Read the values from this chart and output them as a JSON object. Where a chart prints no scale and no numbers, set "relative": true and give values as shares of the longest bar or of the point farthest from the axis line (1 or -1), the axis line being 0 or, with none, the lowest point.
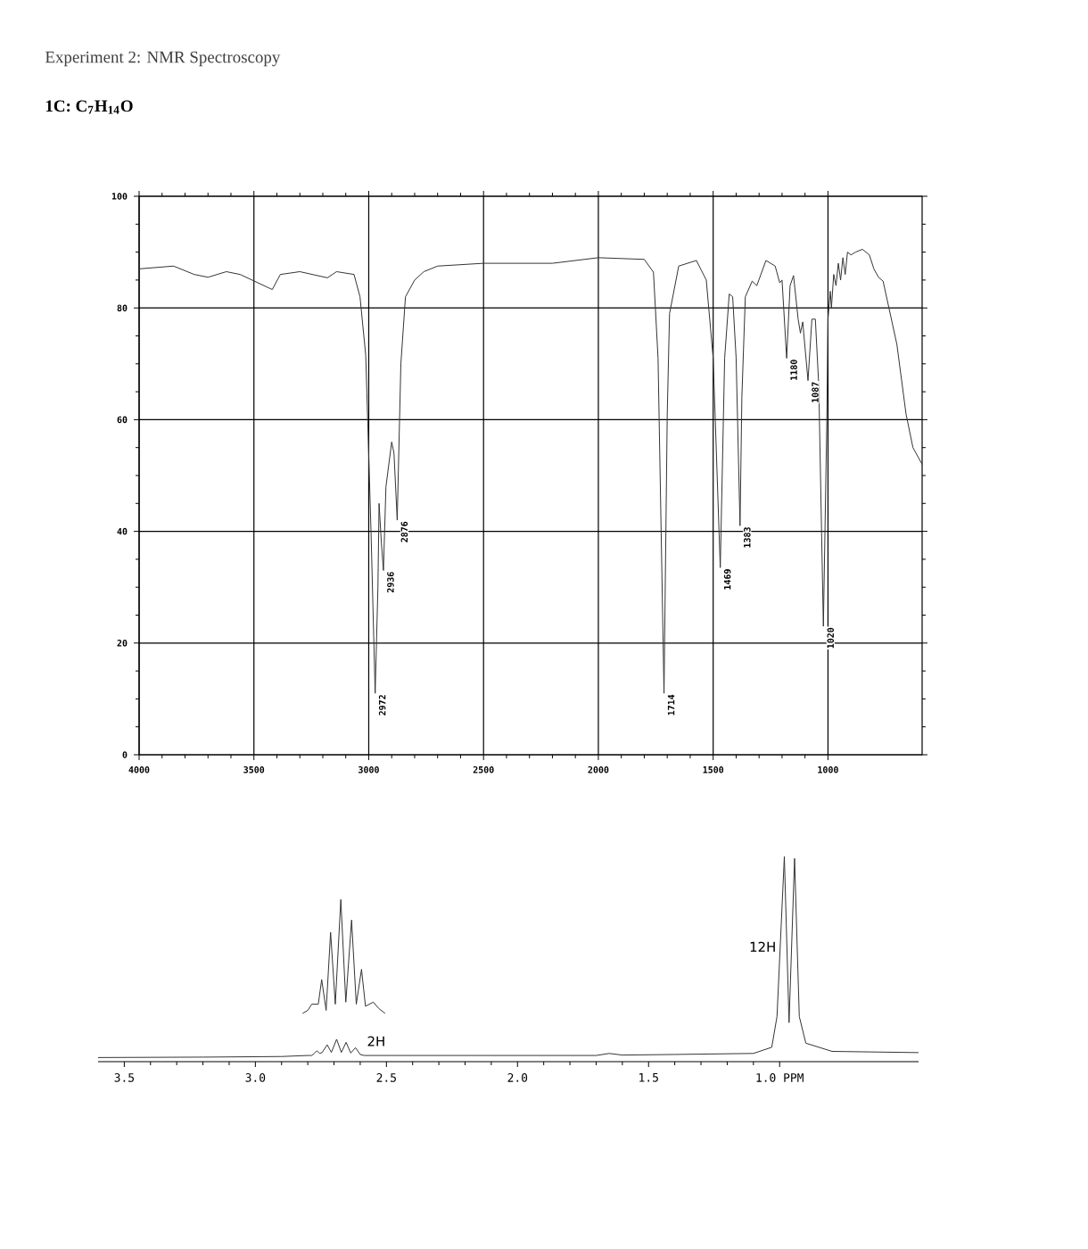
{
  "chart_data": [
    {
      "type": "line",
      "title": "Experiment 2: NMR Spectroscopy",
      "subtitle": "1C: C$_{7}$H$_{14}$O",
      "xlim": [
        4000,
        590
      ],
      "ylim": [
        0,
        100
      ],
      "xticks": [
        4000,
        3500,
        3000,
        2500,
        2000,
        1500,
        1000
      ],
      "yticks": [
        0,
        20,
        40,
        60,
        80,
        100
      ],
      "grid": true,
      "series": [
        {
          "color": "#333333",
          "x": [
            4000,
            3850,
            3760,
            3700,
            3620,
            3560,
            3420,
            3385,
            3300,
            3180,
            3140,
            3064,
            3038,
            3013,
            2990,
            2972,
            2960,
            2955,
            2945,
            2936,
            2925,
            2900,
            2890,
            2876,
            2860,
            2840,
            2800,
            2760,
            2700,
            2500,
            2200,
            2000,
            1800,
            1760,
            1740,
            1714,
            1700,
            1690,
            1650,
            1573,
            1530,
            1500,
            1469,
            1450,
            1430,
            1415,
            1400,
            1383,
            1375,
            1360,
            1330,
            1310,
            1270,
            1230,
            1210,
            1200,
            1180,
            1165,
            1150,
            1130,
            1120,
            1110,
            1087,
            1070,
            1055,
            1040,
            1020,
            1005,
            1000,
            990,
            985,
            975,
            965,
            955,
            945,
            935,
            925,
            915,
            900,
            880,
            850,
            820,
            800,
            780,
            760,
            700,
            660,
            630,
            590
          ],
          "values": [
            87,
            87.5,
            86,
            85.5,
            86.5,
            86,
            83.3,
            86,
            86.5,
            85.4,
            86.5,
            86,
            82,
            71.5,
            40,
            11,
            30,
            45,
            38,
            33,
            48,
            56,
            54,
            42,
            70,
            82,
            85,
            86.5,
            87.5,
            88,
            88,
            89,
            88.7,
            86.4,
            71,
            11,
            61,
            79,
            87.5,
            88.5,
            85,
            71,
            33.5,
            71,
            82.5,
            82,
            71,
            41,
            64,
            82,
            84.8,
            84,
            88.5,
            87.5,
            84.5,
            85,
            71,
            84,
            85.8,
            78,
            75.5,
            77.5,
            67,
            78,
            78,
            66,
            23,
            60,
            78,
            83,
            80,
            86,
            84,
            88,
            85,
            89,
            86,
            90,
            89.5,
            90,
            90.5,
            89.5,
            87,
            85.5,
            84.8,
            73.5,
            61,
            55,
            52
          ]
        }
      ],
      "annotations": [
        {
          "text": "2972",
          "x": 2972,
          "y": 11
        },
        {
          "text": "2936",
          "x": 2936,
          "y": 33
        },
        {
          "text": "2876",
          "x": 2876,
          "y": 42
        },
        {
          "text": "1714",
          "x": 1714,
          "y": 11
        },
        {
          "text": "1469",
          "x": 1469,
          "y": 33.5
        },
        {
          "text": "1383",
          "x": 1383,
          "y": 41
        },
        {
          "text": "1180",
          "x": 1180,
          "y": 71
        },
        {
          "text": "1087",
          "x": 1087,
          "y": 67
        },
        {
          "text": "1020",
          "x": 1020,
          "y": 23
        }
      ]
    },
    {
      "type": "line",
      "relative": true,
      "xlim": [
        3.6,
        0.47
      ],
      "xticks": [
        3.5,
        {
          "value": 3,
          "label": "3.0"
        },
        2.5,
        {
          "value": 2,
          "label": "2.0"
        },
        1.5,
        {
          "value": 1,
          "label": "1.0 PPM"
        }
      ],
      "series": [
        {
          "color": "#333333",
          "x": [
            3.6,
            3.2,
            2.9,
            2.8,
            2.785,
            2.775,
            2.765,
            2.755,
            2.745,
            2.726,
            2.71,
            2.69,
            2.672,
            2.654,
            2.636,
            2.618,
            2.6,
            2.585,
            2.55,
            2.2,
            1.7,
            1.65,
            1.6,
            1.4,
            1.1,
            1.03,
            1.01,
            0.982,
            0.964,
            0.943,
            0.925,
            0.9,
            0.8,
            0.47
          ],
          "values": [
            0.02,
            0.022,
            0.025,
            0.03,
            0.03,
            0.04,
            0.053,
            0.04,
            0.045,
            0.082,
            0.045,
            0.109,
            0.045,
            0.094,
            0.042,
            0.068,
            0.035,
            0.03,
            0.03,
            0.03,
            0.03,
            0.04,
            0.032,
            0.035,
            0.04,
            0.07,
            0.22,
            1.0,
            0.19,
            0.99,
            0.22,
            0.09,
            0.05,
            0.044
          ]
        },
        {
          "color": "#333333",
          "x": [
            2.82,
            2.8,
            2.785,
            2.76,
            2.747,
            2.73,
            2.713,
            2.695,
            2.674,
            2.655,
            2.633,
            2.615,
            2.595,
            2.58,
            2.55,
            2.53,
            2.505
          ],
          "values": [
            0.235,
            0.25,
            0.28,
            0.28,
            0.4,
            0.25,
            0.63,
            0.28,
            0.79,
            0.29,
            0.69,
            0.28,
            0.45,
            0.27,
            0.29,
            0.26,
            0.235
          ]
        }
      ],
      "annotations": [
        "2H",
        "12H"
      ]
    }
  ]
}
